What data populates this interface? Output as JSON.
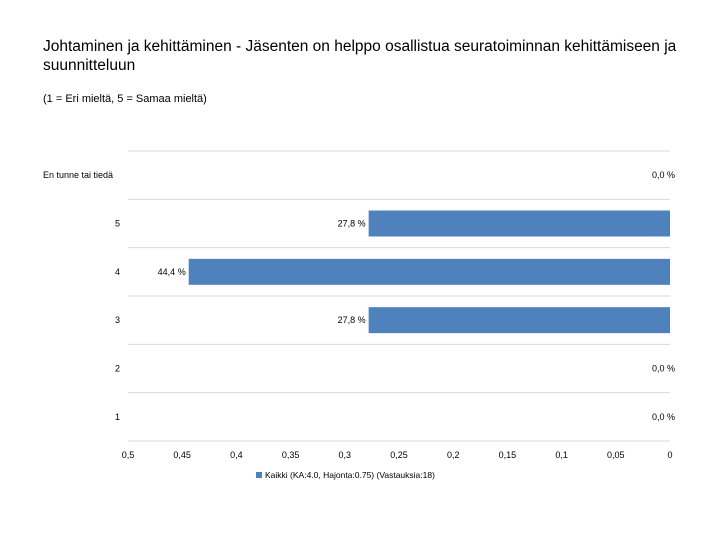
{
  "chart_data": {
    "type": "bar",
    "orientation": "horizontal",
    "title": "Johtaminen ja kehittäminen - Jäsenten on helppo osallistua seuratoiminnan kehittämiseen ja suunnitteluun",
    "subtitle": "(1 = Eri mieltä, 5 = Samaa mieltä)",
    "categories": [
      "En tunne tai tiedä",
      "5",
      "4",
      "3",
      "2",
      "1"
    ],
    "series": [
      {
        "name": "Kaikki (KA:4.0, Hajonta:0.75) (Vastauksia:18)",
        "values": [
          0.0,
          0.278,
          0.444,
          0.278,
          0.0,
          0.0
        ],
        "labels": [
          "0,0 %",
          "27,8 %",
          "44,4 %",
          "27,8 %",
          "0,0 %",
          "0,0 %"
        ],
        "color": "#4f81bd"
      }
    ],
    "xaxis_reversed": true,
    "xlim": [
      0,
      0.5
    ],
    "xticks": [
      0.5,
      0.45,
      0.4,
      0.35,
      0.3,
      0.25,
      0.2,
      0.15,
      0.1,
      0.05,
      0
    ],
    "xtick_labels": [
      "0,5",
      "0,45",
      "0,4",
      "0,35",
      "0,3",
      "0,25",
      "0,2",
      "0,15",
      "0,1",
      "0,05",
      "0"
    ],
    "legend_position": "bottom",
    "grid": "horizontal"
  }
}
